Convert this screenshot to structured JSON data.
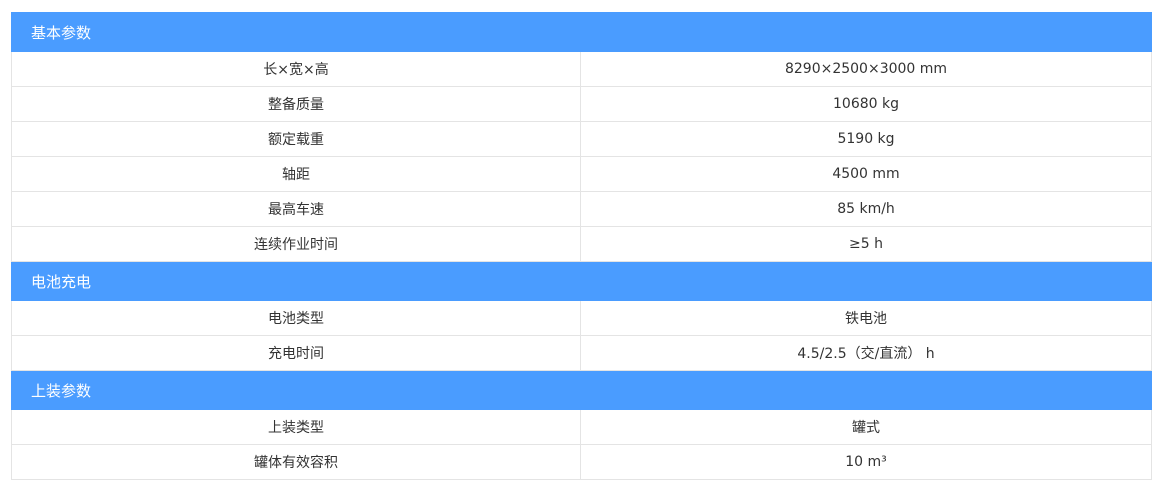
{
  "sections": [
    {
      "title": "基本参数",
      "rows": [
        {
          "label": "长×宽×高",
          "value": "8290×2500×3000 mm"
        },
        {
          "label": "整备质量",
          "value": "10680 kg"
        },
        {
          "label": "额定载重",
          "value": "5190 kg"
        },
        {
          "label": "轴距",
          "value": "4500 mm"
        },
        {
          "label": "最高车速",
          "value": "85 km/h"
        },
        {
          "label": "连续作业时间",
          "value": "≥5 h"
        }
      ]
    },
    {
      "title": "电池充电",
      "rows": [
        {
          "label": "电池类型",
          "value": "铁电池"
        },
        {
          "label": "充电时间",
          "value": "4.5/2.5（交/直流） h"
        }
      ]
    },
    {
      "title": "上装参数",
      "rows": [
        {
          "label": "上装类型",
          "value": "罐式"
        },
        {
          "label": "罐体有效容积",
          "value": "10 m³"
        }
      ]
    }
  ],
  "colors": {
    "section_header_bg": "#4a9cff",
    "section_header_text": "#ffffff",
    "border": "#e4e4e4",
    "text": "#333333"
  }
}
